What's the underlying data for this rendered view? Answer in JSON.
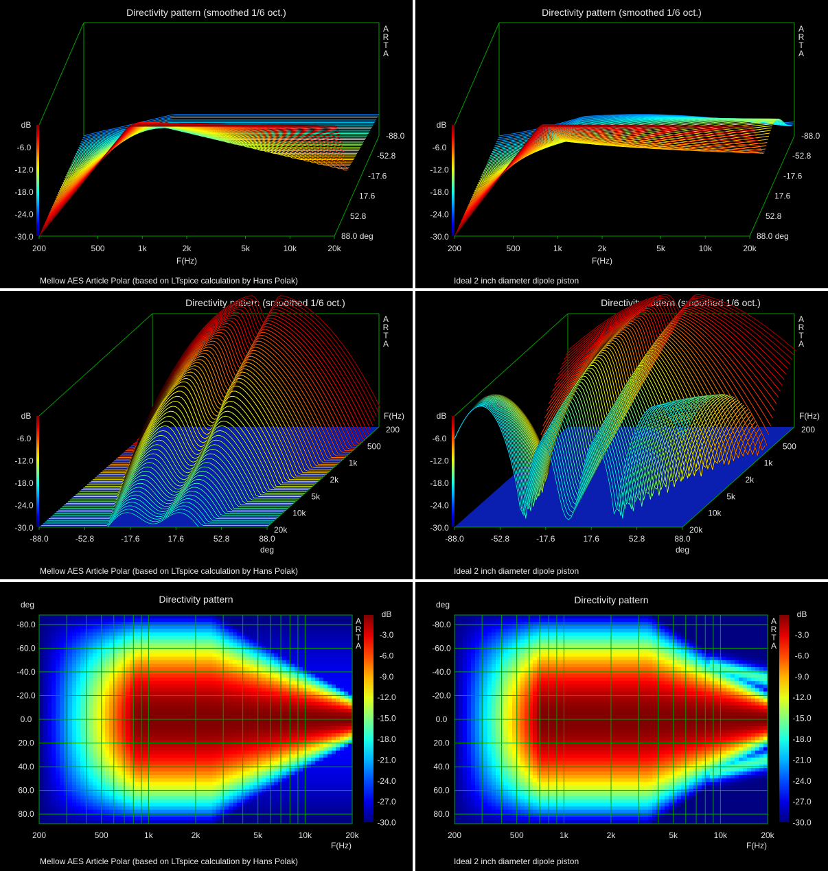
{
  "colors": {
    "background": "#000000",
    "frame": "#00a000",
    "text": "#e0e0e0",
    "separator": "#ffffff"
  },
  "panels": [
    {
      "id": "p1",
      "title": "Directivity pattern (smoothed 1/6 oct.)",
      "caption": "Mellow AES Article Polar (based on LTspice calculation by Hans Polak)",
      "brand": "A R T A",
      "kind": "waterfall-freq",
      "fields_label": "dB",
      "chart_data": {
        "type": "waterfall",
        "x_ticks": [
          "200",
          "500",
          "1k",
          "2k",
          "5k",
          "10k",
          "20k"
        ],
        "x_label": "F(Hz)",
        "z_ticks": [
          "-6.0",
          "-12.0",
          "-18.0",
          "-24.0",
          "-30.0"
        ],
        "z_label": "dB",
        "depth_ticks": [
          "-88.0",
          "-52.8",
          "-17.6",
          "17.6",
          "52.8",
          "88.0 deg"
        ],
        "zlim": [
          -30,
          0
        ],
        "xlim": [
          200,
          20000
        ],
        "depth_range": [
          -88,
          88
        ]
      }
    },
    {
      "id": "p2",
      "title": "Directivity pattern (smoothed 1/6 oct.)",
      "caption": "Ideal 2 inch diameter dipole piston",
      "brand": "A R T A",
      "kind": "waterfall-freq",
      "chart_data": {
        "type": "waterfall",
        "x_ticks": [
          "200",
          "500",
          "1k",
          "2k",
          "5k",
          "10k",
          "20k"
        ],
        "x_label": "F(Hz)",
        "z_ticks": [
          "-6.0",
          "-12.0",
          "-18.0",
          "-24.0",
          "-30.0"
        ],
        "z_label": "dB",
        "depth_ticks": [
          "-88.0",
          "-52.8",
          "-17.6",
          "17.6",
          "52.8",
          "88.0 deg"
        ],
        "zlim": [
          -30,
          0
        ],
        "xlim": [
          200,
          20000
        ],
        "depth_range": [
          -88,
          88
        ]
      }
    },
    {
      "id": "p3",
      "title": "Directivity pattern (smoothed 1/6 oct.)",
      "caption": "Mellow AES Article Polar (based on LTspice calculation by Hans Polak)",
      "brand": "A R T A",
      "kind": "waterfall-angle",
      "chart_data": {
        "type": "waterfall",
        "x_ticks": [
          "-88.0",
          "-52.8",
          "-17.6",
          "17.6",
          "52.8",
          "88.0"
        ],
        "x_label": "deg",
        "z_ticks": [
          "-6.0",
          "-12.0",
          "-18.0",
          "-24.0",
          "-30.0"
        ],
        "z_label": "dB",
        "depth_ticks": [
          "200",
          "500",
          "1k",
          "2k",
          "5k",
          "10k",
          "20k"
        ],
        "depth_label": "F(Hz)",
        "zlim": [
          -30,
          0
        ],
        "xlim": [
          -88,
          88
        ],
        "depth_range": [
          200,
          20000
        ]
      }
    },
    {
      "id": "p4",
      "title": "Directivity pattern (smoothed 1/6 oct.)",
      "caption": "Ideal 2 inch diameter dipole piston",
      "brand": "A R T A",
      "kind": "waterfall-angle",
      "chart_data": {
        "type": "waterfall",
        "x_ticks": [
          "-88.0",
          "-52.8",
          "-17.6",
          "17.6",
          "52.8",
          "88.0"
        ],
        "x_label": "deg",
        "z_ticks": [
          "-6.0",
          "-12.0",
          "-18.0",
          "-24.0",
          "-30.0"
        ],
        "z_label": "dB",
        "depth_ticks": [
          "200",
          "500",
          "1k",
          "2k",
          "5k",
          "10k",
          "20k"
        ],
        "depth_label": "F(Hz)",
        "zlim": [
          -30,
          0
        ],
        "xlim": [
          -88,
          88
        ],
        "depth_range": [
          200,
          20000
        ]
      }
    },
    {
      "id": "p5",
      "title": "Directivity pattern",
      "caption": "Mellow AES Article Polar (based on LTspice calculation by Hans Polak)",
      "brand": "A R T A",
      "kind": "heatmap",
      "chart_data": {
        "type": "heatmap",
        "x_ticks": [
          "200",
          "500",
          "1k",
          "2k",
          "5k",
          "10k",
          "20k"
        ],
        "x_label": "F(Hz)",
        "y_ticks": [
          "-80.0",
          "-60.0",
          "-40.0",
          "-20.0",
          "0.0",
          "20.0",
          "40.0",
          "60.0",
          "80.0"
        ],
        "y_label": "deg",
        "colorbar_label": "dB",
        "colorbar_ticks": [
          "-3.0",
          "-6.0",
          "-9.0",
          "-12.0",
          "-15.0",
          "-18.0",
          "-21.0",
          "-24.0",
          "-27.0",
          "-30.0"
        ],
        "xlim": [
          200,
          20000
        ],
        "ylim": [
          -88,
          88
        ],
        "zlim": [
          -30,
          0
        ]
      }
    },
    {
      "id": "p6",
      "title": "Directivity pattern",
      "caption": "Ideal 2 inch diameter dipole piston",
      "brand": "A R T A",
      "kind": "heatmap",
      "chart_data": {
        "type": "heatmap",
        "x_ticks": [
          "200",
          "500",
          "1k",
          "2k",
          "5k",
          "10k",
          "20k"
        ],
        "x_label": "F(Hz)",
        "y_ticks": [
          "-80.0",
          "-60.0",
          "-40.0",
          "-20.0",
          "0.0",
          "20.0",
          "40.0",
          "60.0",
          "80.0"
        ],
        "y_label": "deg",
        "colorbar_label": "dB",
        "colorbar_ticks": [
          "-3.0",
          "-6.0",
          "-9.0",
          "-12.0",
          "-15.0",
          "-18.0",
          "-21.0",
          "-24.0",
          "-27.0",
          "-30.0"
        ],
        "xlim": [
          200,
          20000
        ],
        "ylim": [
          -88,
          88
        ],
        "zlim": [
          -30,
          0
        ]
      }
    }
  ]
}
